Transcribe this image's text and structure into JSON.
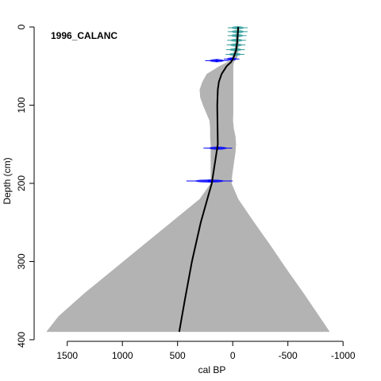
{
  "chart_data": {
    "type": "line",
    "title": "1996_CALANC",
    "xlabel": "cal BP",
    "ylabel": "Depth (cm)",
    "x_reversed": true,
    "xlim": [
      1800,
      -1200
    ],
    "ylim": [
      400,
      0
    ],
    "x_ticks": [
      1500,
      1000,
      500,
      0,
      -500,
      -1000
    ],
    "x_tick_labels": [
      "1500",
      "1000",
      "500",
      "0",
      "-500",
      "-1000"
    ],
    "y_ticks": [
      0,
      100,
      200,
      300,
      400
    ],
    "y_tick_labels": [
      "0",
      "100",
      "200",
      "300",
      "400"
    ],
    "colors": {
      "envelope": "#b3b3b3",
      "median": "#000000",
      "dates": "#0000ff",
      "recent_dates": "#2e9c9a"
    },
    "envelope": {
      "depth": [
        0,
        10,
        20,
        30,
        40,
        45,
        50,
        60,
        70,
        80,
        90,
        100,
        110,
        120,
        130,
        140,
        150,
        160,
        170,
        180,
        190,
        200,
        220,
        250,
        280,
        310,
        340,
        370,
        390
      ],
      "min_age": [
        -60,
        -55,
        -55,
        -50,
        -40,
        -10,
        -5,
        -5,
        -5,
        -5,
        -5,
        -5,
        -5,
        -3,
        -10,
        -25,
        -30,
        -25,
        -15,
        -5,
        5,
        10,
        -50,
        -195,
        -345,
        -490,
        -640,
        -785,
        -880
      ],
      "max_age": [
        -40,
        -30,
        -25,
        -15,
        10,
        50,
        120,
        235,
        275,
        300,
        295,
        270,
        240,
        210,
        205,
        205,
        200,
        200,
        200,
        200,
        200,
        200,
        300,
        560,
        820,
        1080,
        1340,
        1580,
        1690
      ]
    },
    "median_line": {
      "depth": [
        0,
        10,
        20,
        30,
        40,
        45,
        50,
        60,
        70,
        80,
        100,
        150,
        200,
        250,
        300,
        350,
        390
      ],
      "age": [
        -50,
        -45,
        -40,
        -30,
        -5,
        15,
        55,
        100,
        125,
        135,
        140,
        135,
        190,
        290,
        370,
        435,
        485
      ]
    },
    "dated_levels": [
      {
        "depth": 1,
        "age": -45,
        "error": 90
      },
      {
        "depth": 6,
        "age": -45,
        "error": 90
      },
      {
        "depth": 11,
        "age": -40,
        "error": 85
      },
      {
        "depth": 17,
        "age": -35,
        "error": 85
      },
      {
        "depth": 23,
        "age": -30,
        "error": 85
      },
      {
        "depth": 29,
        "age": -25,
        "error": 85
      },
      {
        "depth": 35,
        "age": -20,
        "error": 85
      },
      {
        "depth": 41,
        "age": 10,
        "error": 70
      },
      {
        "depth": 43,
        "age": 145,
        "error": 105
      },
      {
        "depth": 155,
        "age": 135,
        "error": 130
      },
      {
        "depth": 197,
        "age": 210,
        "error": 210
      }
    ]
  }
}
